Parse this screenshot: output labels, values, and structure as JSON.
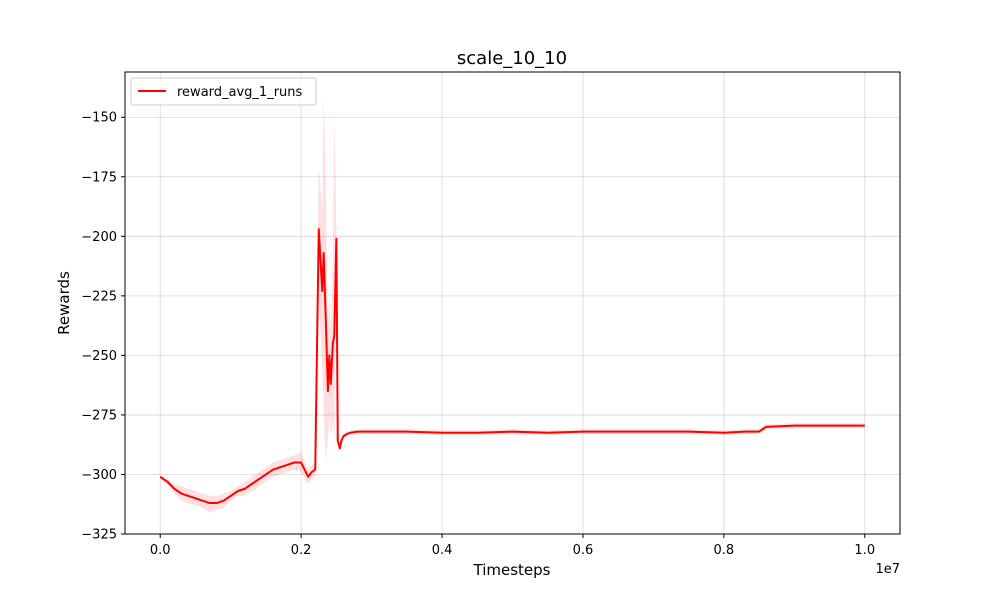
{
  "chart_data": {
    "type": "line",
    "title": "scale_10_10",
    "xlabel": "Timesteps",
    "ylabel": "Rewards",
    "x_scale_label": "1e7",
    "xlim": [
      -0.05,
      1.05
    ],
    "ylim": [
      -325,
      -131
    ],
    "x_ticks": [
      0.0,
      0.2,
      0.4,
      0.6,
      0.8,
      1.0
    ],
    "x_tick_labels": [
      "0.0",
      "0.2",
      "0.4",
      "0.6",
      "0.8",
      "1.0"
    ],
    "y_ticks": [
      -325,
      -300,
      -275,
      -250,
      -225,
      -200,
      -175,
      -150
    ],
    "y_tick_labels": [
      "−325",
      "−300",
      "−275",
      "−250",
      "−225",
      "−200",
      "−175",
      "−150"
    ],
    "grid": true,
    "legend_position": "top-left",
    "colors": {
      "line": "#ff0000",
      "band": "#ff0000"
    },
    "series": [
      {
        "name": "reward_avg_1_runs",
        "x": [
          0.0,
          0.01,
          0.02,
          0.03,
          0.04,
          0.05,
          0.06,
          0.07,
          0.08,
          0.09,
          0.1,
          0.11,
          0.12,
          0.13,
          0.14,
          0.15,
          0.16,
          0.17,
          0.18,
          0.19,
          0.2,
          0.21,
          0.215,
          0.22,
          0.225,
          0.23,
          0.232,
          0.235,
          0.238,
          0.24,
          0.242,
          0.245,
          0.247,
          0.25,
          0.252,
          0.255,
          0.257,
          0.26,
          0.265,
          0.27,
          0.28,
          0.3,
          0.35,
          0.4,
          0.45,
          0.5,
          0.55,
          0.6,
          0.65,
          0.7,
          0.75,
          0.8,
          0.83,
          0.85,
          0.86,
          0.9,
          0.95,
          1.0
        ],
        "y": [
          -301,
          -303,
          -306,
          -308,
          -309,
          -310,
          -311,
          -312,
          -312,
          -311,
          -309,
          -307,
          -306,
          -304,
          -302,
          -300,
          -298,
          -297,
          -296,
          -295,
          -295,
          -301,
          -299,
          -298,
          -197,
          -223,
          -207,
          -235,
          -265,
          -250,
          -262,
          -245,
          -242,
          -201,
          -286,
          -289,
          -286,
          -284,
          -283,
          -282.5,
          -282,
          -282,
          -282,
          -282.5,
          -282.5,
          -282,
          -282.5,
          -282,
          -282,
          -282,
          -282,
          -282.5,
          -282,
          -282,
          -280,
          -279.5,
          -279.5,
          -279.5
        ],
        "band_upper": [
          -300,
          -302,
          -304,
          -305,
          -306,
          -307,
          -308,
          -309,
          -309,
          -308,
          -307,
          -305,
          -303,
          -301,
          -299,
          -297,
          -295,
          -294,
          -293,
          -292,
          -291,
          -298,
          -296,
          -295,
          -170,
          -190,
          -140,
          -175,
          -245,
          -225,
          -240,
          -212,
          -148,
          -195,
          -283,
          -287,
          -285,
          -283,
          -282,
          -281.5,
          -281,
          -281,
          -281,
          -281.5,
          -281.5,
          -281,
          -281.5,
          -281,
          -281,
          -281,
          -281,
          -281.5,
          -281,
          -281,
          -279,
          -278.5,
          -278.5,
          -278.5
        ],
        "band_lower": [
          -302,
          -304,
          -308,
          -311,
          -312,
          -313,
          -314,
          -316,
          -315,
          -314,
          -311,
          -309,
          -309,
          -307,
          -305,
          -303,
          -301,
          -300,
          -299,
          -298,
          -299,
          -304,
          -302,
          -301,
          -224,
          -256,
          -274,
          -295,
          -285,
          -275,
          -284,
          -278,
          -290,
          -207,
          -289,
          -291,
          -288,
          -285,
          -284,
          -283.5,
          -283,
          -283,
          -283,
          -283.5,
          -283.5,
          -283,
          -283.5,
          -283,
          -283,
          -283,
          -283,
          -283.5,
          -283,
          -283,
          -281,
          -280.5,
          -280.5,
          -280.5
        ]
      }
    ]
  }
}
